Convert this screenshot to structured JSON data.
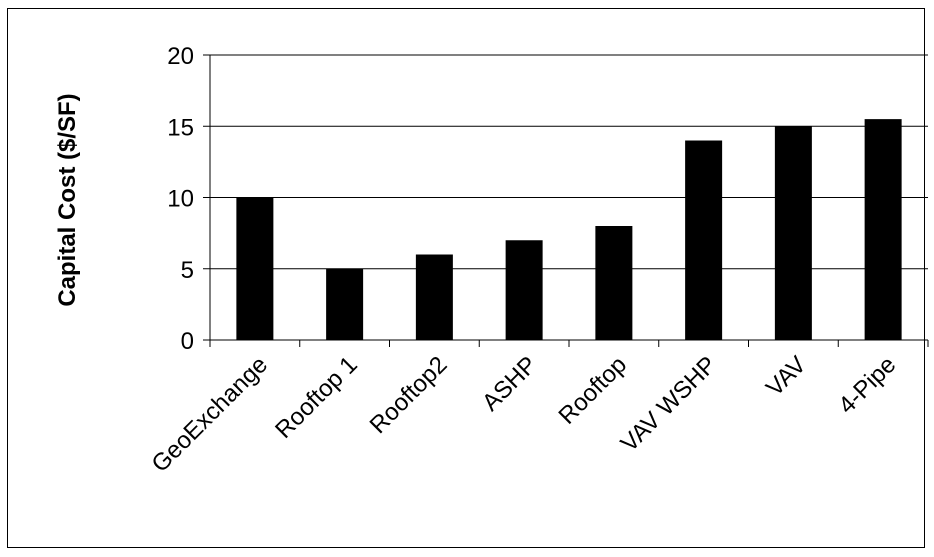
{
  "chart_data": {
    "type": "bar",
    "title": "",
    "xlabel": "",
    "ylabel": "Capital Cost ($/SF)",
    "categories": [
      "GeoExchange",
      "Rooftop 1",
      "Rooftop2",
      "ASHP",
      "Rooftop",
      "VAV WSHP",
      "VAV",
      "4-Pipe"
    ],
    "values": [
      10,
      5,
      6,
      7,
      8,
      14,
      15,
      15.5
    ],
    "ylim": [
      0,
      20
    ],
    "yticks": [
      "0",
      "5",
      "10",
      "15",
      "20"
    ],
    "grid": true,
    "legend": "none",
    "bar_color": "#000000",
    "gridline_color": "#000000"
  }
}
